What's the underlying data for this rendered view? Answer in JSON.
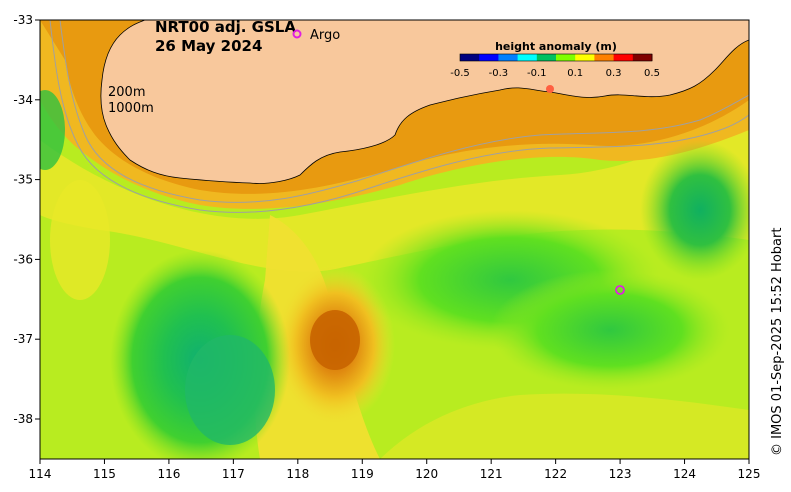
{
  "title": {
    "line1": "NRT00 adj. GSLA",
    "line2": "26 May 2024"
  },
  "legend": {
    "argo_label": "Argo",
    "argo_color": "#e020e0"
  },
  "isobaths": {
    "label_200": "200m",
    "label_1000": "1000m"
  },
  "colorbar": {
    "title": "height anomaly (m)",
    "ticks": [
      "-0.5",
      "-0.3",
      "-0.1",
      "0.1",
      "0.3",
      "0.5"
    ],
    "colors": [
      "#00007f",
      "#0000ff",
      "#0080ff",
      "#00ffff",
      "#00c060",
      "#7fff00",
      "#ffff00",
      "#ff8000",
      "#ff0000",
      "#7f0000"
    ]
  },
  "axes": {
    "x_ticks": [
      "114",
      "115",
      "116",
      "117",
      "118",
      "119",
      "120",
      "121",
      "122",
      "123",
      "124",
      "125"
    ],
    "y_ticks": [
      "-33",
      "-34",
      "-35",
      "-36",
      "-37",
      "-38"
    ],
    "lon_range": [
      114,
      125
    ],
    "lat_range": [
      -38.5,
      -33
    ]
  },
  "credit": "© IMOS 01-Sep-2025 15:52 Hobart",
  "colors": {
    "land": "#f8c89c",
    "coast": "#000000",
    "isobath": "#a0a0a0"
  }
}
